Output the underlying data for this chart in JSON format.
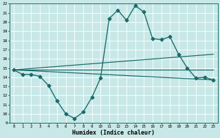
{
  "xlabel": "Humidex (Indice chaleur)",
  "ylabel": "",
  "background_color": "#c8e8e8",
  "grid_color": "#ffffff",
  "line_color": "#1a6b6b",
  "xlim": [
    -0.5,
    23.5
  ],
  "ylim": [
    9,
    22
  ],
  "xticks": [
    0,
    1,
    2,
    3,
    4,
    5,
    6,
    7,
    8,
    9,
    10,
    11,
    12,
    13,
    14,
    15,
    16,
    17,
    18,
    19,
    20,
    21,
    22,
    23
  ],
  "yticks": [
    9,
    10,
    11,
    12,
    13,
    14,
    15,
    16,
    17,
    18,
    19,
    20,
    21,
    22
  ],
  "series": [
    {
      "x": [
        0,
        1,
        2,
        3,
        4,
        5,
        6,
        7,
        8,
        9,
        10,
        11,
        12,
        13,
        14,
        15,
        16,
        17,
        18,
        19,
        20,
        21,
        22,
        23
      ],
      "y": [
        14.8,
        14.3,
        14.3,
        14.1,
        13.1,
        11.4,
        10.0,
        9.5,
        10.2,
        11.8,
        13.9,
        20.4,
        21.3,
        20.2,
        21.8,
        21.1,
        18.2,
        18.1,
        18.4,
        16.5,
        15.0,
        13.9,
        14.0,
        13.7
      ],
      "marker": "D",
      "markersize": 2.5,
      "linewidth": 1.0
    },
    {
      "x": [
        0,
        23
      ],
      "y": [
        14.8,
        13.7
      ],
      "marker": null,
      "markersize": 0,
      "linewidth": 0.9
    },
    {
      "x": [
        0,
        23
      ],
      "y": [
        14.8,
        14.8
      ],
      "marker": null,
      "markersize": 0,
      "linewidth": 0.9
    },
    {
      "x": [
        0,
        23
      ],
      "y": [
        14.8,
        16.5
      ],
      "marker": null,
      "markersize": 0,
      "linewidth": 0.9
    }
  ]
}
